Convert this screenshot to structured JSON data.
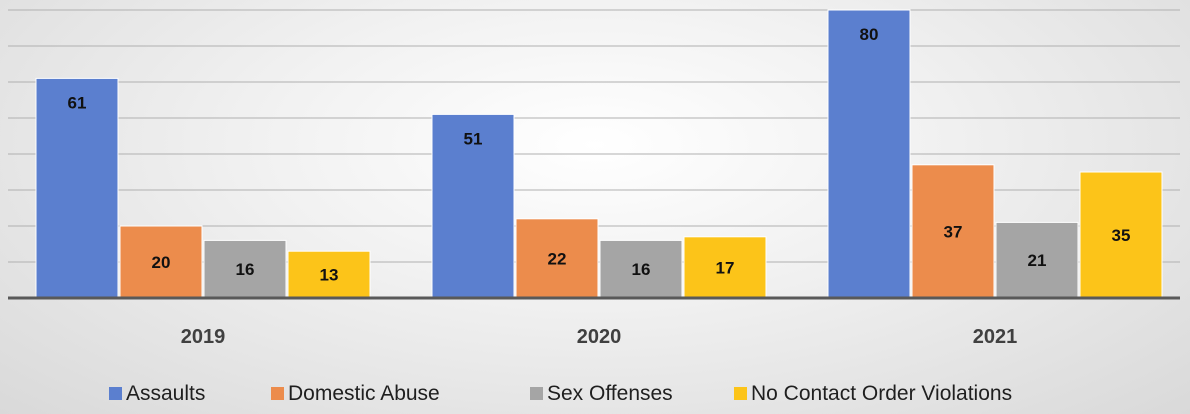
{
  "chart_data": {
    "type": "bar",
    "categories": [
      "2019",
      "2020",
      "2021"
    ],
    "series": [
      {
        "name": "Assaults",
        "values": [
          61,
          51,
          80
        ],
        "color": "#5b7fcf"
      },
      {
        "name": "Domestic Abuse",
        "values": [
          20,
          22,
          37
        ],
        "color": "#ec8c4c"
      },
      {
        "name": "Sex Offenses",
        "values": [
          16,
          16,
          21
        ],
        "color": "#a5a5a5"
      },
      {
        "name": "No Contact Order Violations",
        "values": [
          13,
          17,
          35
        ],
        "color": "#fcc419"
      }
    ],
    "ylim": [
      0,
      80
    ],
    "grid": true,
    "data_labels": true,
    "legend": "bottom",
    "title": "",
    "xlabel": "",
    "ylabel": ""
  }
}
